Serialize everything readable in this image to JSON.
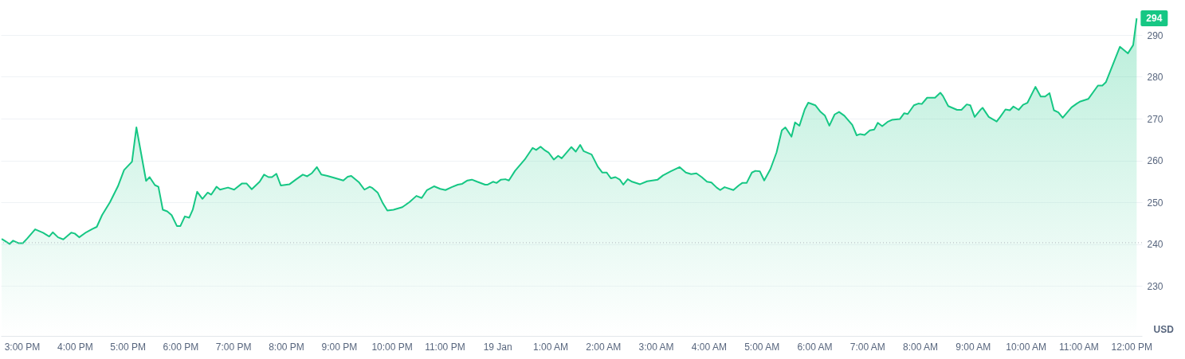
{
  "chart_data": {
    "type": "area",
    "ylabel": "USD",
    "grid": "y",
    "xlim": [
      "--01-18T14:36",
      "--01-19T12:12"
    ],
    "ylim": [
      218,
      298
    ],
    "xticks": [
      {
        "value": "--01-18T15:00",
        "label": "3:00 PM"
      },
      {
        "value": "--01-18T16:00",
        "label": "4:00 PM"
      },
      {
        "value": "--01-18T17:00",
        "label": "5:00 PM"
      },
      {
        "value": "--01-18T18:00",
        "label": "6:00 PM"
      },
      {
        "value": "--01-18T19:00",
        "label": "7:00 PM"
      },
      {
        "value": "--01-18T20:00",
        "label": "8:00 PM"
      },
      {
        "value": "--01-18T21:00",
        "label": "9:00 PM"
      },
      {
        "value": "--01-18T22:00",
        "label": "10:00 PM"
      },
      {
        "value": "--01-18T23:00",
        "label": "11:00 PM"
      },
      {
        "value": "--01-19T00:00",
        "label": "19 Jan"
      },
      {
        "value": "--01-19T01:00",
        "label": "1:00 AM"
      },
      {
        "value": "--01-19T02:00",
        "label": "2:00 AM"
      },
      {
        "value": "--01-19T03:00",
        "label": "3:00 AM"
      },
      {
        "value": "--01-19T04:00",
        "label": "4:00 AM"
      },
      {
        "value": "--01-19T05:00",
        "label": "5:00 AM"
      },
      {
        "value": "--01-19T06:00",
        "label": "6:00 AM"
      },
      {
        "value": "--01-19T07:00",
        "label": "7:00 AM"
      },
      {
        "value": "--01-19T08:00",
        "label": "8:00 AM"
      },
      {
        "value": "--01-19T09:00",
        "label": "9:00 AM"
      },
      {
        "value": "--01-19T10:00",
        "label": "10:00 AM"
      },
      {
        "value": "--01-19T11:00",
        "label": "11:00 AM"
      },
      {
        "value": "--01-19T12:00",
        "label": "12:00 PM"
      }
    ],
    "yticks": [
      230,
      240,
      250,
      260,
      270,
      280,
      290
    ],
    "ref_lines": [
      {
        "axis": "y",
        "value": 240.3,
        "color": "#b0b5bd",
        "line_style": "dotted"
      }
    ],
    "annotations": [
      {
        "text": "294",
        "x": "--01-19T12:06",
        "y": 294
      }
    ],
    "x": [
      "--01-18T14:37",
      "--01-18T14:41",
      "--01-18T14:46",
      "--01-18T14:50",
      "--01-18T14:56",
      "--01-18T15:01",
      "--01-18T15:06",
      "--01-18T15:15",
      "--01-18T15:24",
      "--01-18T15:31",
      "--01-18T15:35",
      "--01-18T15:41",
      "--01-18T15:47",
      "--01-18T15:56",
      "--01-18T16:00",
      "--01-18T16:05",
      "--01-18T16:13",
      "--01-18T16:20",
      "--01-18T16:25",
      "--01-18T16:31",
      "--01-18T16:40",
      "--01-18T16:49",
      "--01-18T16:56",
      "--01-18T17:05",
      "--01-18T17:10",
      "--01-18T17:21",
      "--01-18T17:25",
      "--01-18T17:31",
      "--01-18T17:35",
      "--01-18T17:40",
      "--01-18T17:45",
      "--01-18T17:50",
      "--01-18T17:56",
      "--01-18T18:00",
      "--01-18T18:05",
      "--01-18T18:10",
      "--01-18T18:14",
      "--01-18T18:19",
      "--01-18T18:25",
      "--01-18T18:31",
      "--01-18T18:35",
      "--01-18T18:41",
      "--01-18T18:45",
      "--01-18T18:54",
      "--01-18T19:01",
      "--01-18T19:10",
      "--01-18T19:15",
      "--01-18T19:21",
      "--01-18T19:30",
      "--01-18T19:35",
      "--01-18T19:40",
      "--01-18T19:44",
      "--01-18T19:49",
      "--01-18T19:54",
      "--01-18T20:04",
      "--01-18T20:11",
      "--01-18T20:19",
      "--01-18T20:24",
      "--01-18T20:29",
      "--01-18T20:35",
      "--01-18T20:40",
      "--01-18T20:47",
      "--01-18T20:55",
      "--01-18T21:05",
      "--01-18T21:10",
      "--01-18T21:14",
      "--01-18T21:23",
      "--01-18T21:29",
      "--01-18T21:35",
      "--01-18T21:38",
      "--01-18T21:44",
      "--01-18T21:50",
      "--01-18T21:55",
      "--01-18T22:02",
      "--01-18T22:12",
      "--01-18T22:20",
      "--01-18T22:28",
      "--01-18T22:34",
      "--01-18T22:40",
      "--01-18T22:48",
      "--01-18T22:55",
      "--01-18T23:01",
      "--01-18T23:08",
      "--01-18T23:15",
      "--01-18T23:20",
      "--01-18T23:26",
      "--01-18T23:31",
      "--01-18T23:37",
      "--01-18T23:46",
      "--01-18T23:49",
      "--01-18T23:55",
      "--01-18T23:59",
      "--01-19T00:04",
      "--01-19T00:09",
      "--01-19T00:13",
      "--01-19T00:20",
      "--01-19T00:31",
      "--01-19T00:40",
      "--01-19T00:44",
      "--01-19T00:49",
      "--01-19T00:54",
      "--01-19T00:58",
      "--01-19T01:04",
      "--01-19T01:09",
      "--01-19T01:13",
      "--01-19T01:24",
      "--01-19T01:29",
      "--01-19T01:34",
      "--01-19T01:38",
      "--01-19T01:47",
      "--01-19T01:54",
      "--01-19T01:59",
      "--01-19T02:04",
      "--01-19T02:09",
      "--01-19T02:14",
      "--01-19T02:19",
      "--01-19T02:23",
      "--01-19T02:28",
      "--01-19T02:33",
      "--01-19T02:42",
      "--01-19T02:50",
      "--01-19T03:02",
      "--01-19T03:08",
      "--01-19T03:17",
      "--01-19T03:27",
      "--01-19T03:34",
      "--01-19T03:40",
      "--01-19T03:46",
      "--01-19T03:52",
      "--01-19T03:58",
      "--01-19T04:03",
      "--01-19T04:09",
      "--01-19T04:13",
      "--01-19T04:18",
      "--01-19T04:28",
      "--01-19T04:34",
      "--01-19T04:38",
      "--01-19T04:43",
      "--01-19T04:49",
      "--01-19T04:53",
      "--01-19T04:58",
      "--01-19T05:03",
      "--01-19T05:10",
      "--01-19T05:17",
      "--01-19T05:23",
      "--01-19T05:27",
      "--01-19T05:34",
      "--01-19T05:38",
      "--01-19T05:43",
      "--01-19T05:49",
      "--01-19T05:53",
      "--01-19T06:01",
      "--01-19T06:07",
      "--01-19T06:12",
      "--01-19T06:17",
      "--01-19T06:23",
      "--01-19T06:28",
      "--01-19T06:34",
      "--01-19T06:43",
      "--01-19T06:48",
      "--01-19T06:52",
      "--01-19T06:57",
      "--01-19T07:03",
      "--01-19T07:08",
      "--01-19T07:12",
      "--01-19T07:17",
      "--01-19T07:23",
      "--01-19T07:28",
      "--01-19T07:37",
      "--01-19T07:42",
      "--01-19T07:46",
      "--01-19T07:53",
      "--01-19T07:58",
      "--01-19T08:02",
      "--01-19T08:08",
      "--01-19T08:17",
      "--01-19T08:23",
      "--01-19T08:26",
      "--01-19T08:32",
      "--01-19T08:42",
      "--01-19T08:47",
      "--01-19T08:53",
      "--01-19T08:57",
      "--01-19T09:02",
      "--01-19T09:09",
      "--01-19T09:11",
      "--01-19T09:18",
      "--01-19T09:27",
      "--01-19T09:31",
      "--01-19T09:37",
      "--01-19T09:42",
      "--01-19T09:46",
      "--01-19T09:52",
      "--01-19T09:57",
      "--01-19T10:02",
      "--01-19T10:11",
      "--01-19T10:17",
      "--01-19T10:22",
      "--01-19T10:27",
      "--01-19T10:32",
      "--01-19T10:37",
      "--01-19T10:42",
      "--01-19T10:52",
      "--01-19T10:58",
      "--01-19T11:02",
      "--01-19T11:11",
      "--01-19T11:22",
      "--01-19T11:27",
      "--01-19T11:31",
      "--01-19T11:47",
      "--01-19T11:56",
      "--01-19T12:02",
      "--01-19T12:06"
    ],
    "series": [
      {
        "color": "#16c784",
        "values": [
          241.2,
          240.7,
          240.0,
          240.8,
          240.2,
          240.2,
          241.3,
          243.5,
          242.7,
          241.8,
          242.8,
          241.6,
          241.1,
          242.7,
          242.5,
          241.6,
          242.8,
          243.6,
          244.1,
          246.9,
          250.0,
          253.8,
          257.7,
          259.7,
          267.9,
          255.1,
          256.0,
          254.1,
          253.7,
          248.2,
          247.8,
          246.9,
          244.3,
          244.3,
          246.6,
          246.3,
          248.2,
          252.5,
          250.8,
          252.3,
          251.8,
          253.7,
          253.0,
          253.5,
          253.0,
          254.5,
          254.5,
          253.1,
          254.9,
          256.6,
          256.0,
          256.0,
          256.8,
          254.0,
          254.3,
          255.4,
          256.6,
          256.2,
          256.9,
          258.4,
          256.6,
          256.3,
          255.8,
          255.2,
          256.1,
          256.3,
          254.7,
          253.0,
          253.7,
          253.4,
          252.3,
          249.7,
          248.0,
          248.2,
          248.8,
          250.0,
          251.5,
          251.0,
          252.9,
          253.8,
          253.2,
          252.9,
          253.6,
          254.2,
          254.4,
          255.2,
          255.4,
          254.9,
          254.2,
          254.2,
          254.9,
          254.6,
          255.4,
          255.5,
          255.2,
          257.5,
          260.2,
          263.0,
          262.5,
          263.3,
          262.4,
          261.9,
          260.2,
          261.1,
          260.5,
          263.2,
          262.1,
          263.7,
          262.2,
          261.4,
          258.5,
          257.1,
          257.1,
          255.7,
          256.0,
          255.4,
          254.2,
          255.5,
          254.9,
          254.3,
          255.0,
          255.4,
          256.4,
          257.4,
          258.4,
          257.1,
          256.7,
          256.9,
          256.0,
          254.9,
          254.7,
          253.5,
          252.9,
          253.6,
          252.9,
          254.0,
          254.6,
          254.6,
          257.1,
          257.5,
          257.4,
          255.2,
          257.9,
          261.9,
          267.2,
          267.9,
          265.7,
          269.1,
          268.3,
          272.2,
          273.8,
          273.2,
          271.6,
          270.7,
          268.3,
          271.0,
          271.6,
          270.7,
          268.5,
          266.0,
          266.3,
          266.1,
          267.2,
          267.4,
          269.0,
          268.2,
          269.2,
          269.7,
          269.9,
          271.3,
          271.1,
          273.2,
          273.6,
          273.5,
          275.0,
          275.0,
          276.2,
          275.4,
          273.0,
          272.1,
          272.1,
          273.4,
          273.2,
          270.4,
          272.2,
          272.6,
          270.4,
          269.3,
          270.4,
          272.2,
          272.0,
          272.9,
          272.1,
          273.3,
          273.8,
          277.6,
          275.3,
          275.3,
          276.1,
          272.0,
          271.5,
          270.2,
          272.7,
          273.6,
          274.1,
          274.7,
          277.9,
          277.9,
          278.7,
          287.2,
          285.6,
          287.6,
          294
        ]
      }
    ]
  }
}
